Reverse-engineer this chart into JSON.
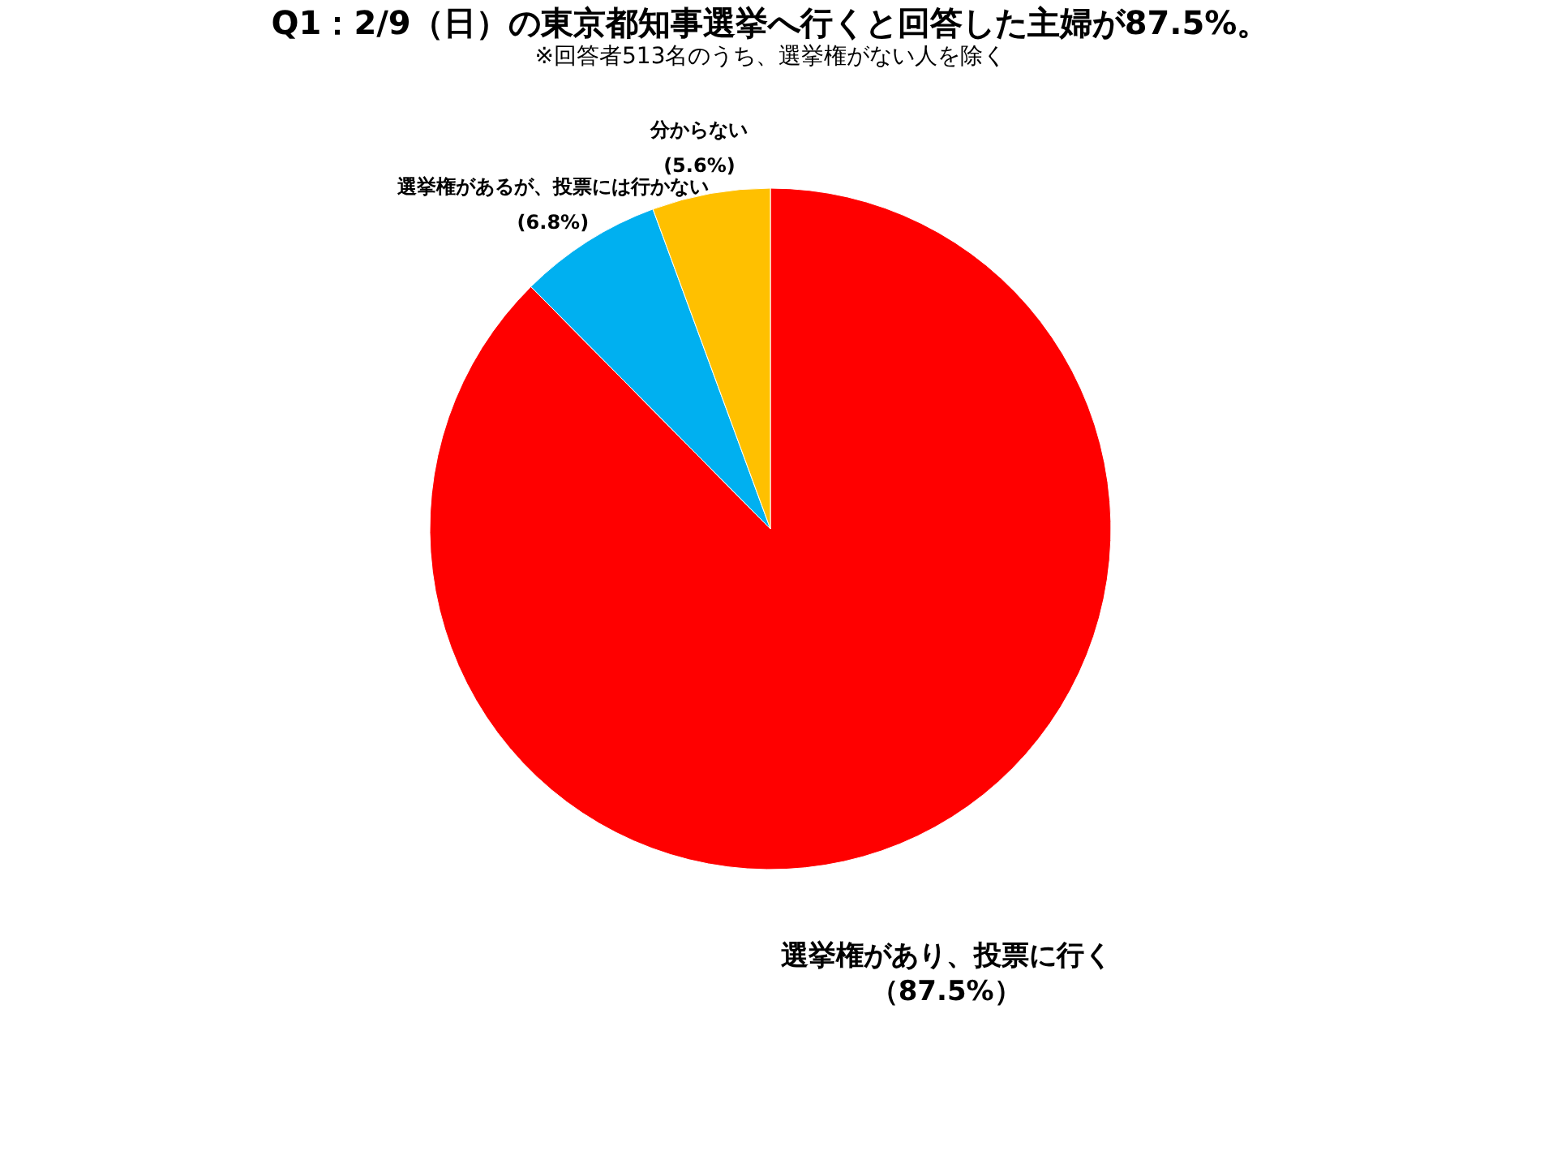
{
  "chart_data": {
    "type": "pie",
    "title": "Q1：2/9（日）の東京都知事選挙へ行くと回答した主婦が87.5%。",
    "subtitle": "※回答者513名のうち、選挙権がない人を除く",
    "categories": [
      "選挙権があり、投票に行く",
      "選挙権があるが、投票には行かない",
      "分からない"
    ],
    "values": [
      87.5,
      6.8,
      5.6
    ],
    "colors": [
      "#ff0000",
      "#00b0f0",
      "#ffc000"
    ],
    "value_labels": [
      "（87.5%）",
      "(6.8%)",
      "(5.6%)"
    ],
    "legend": false
  }
}
